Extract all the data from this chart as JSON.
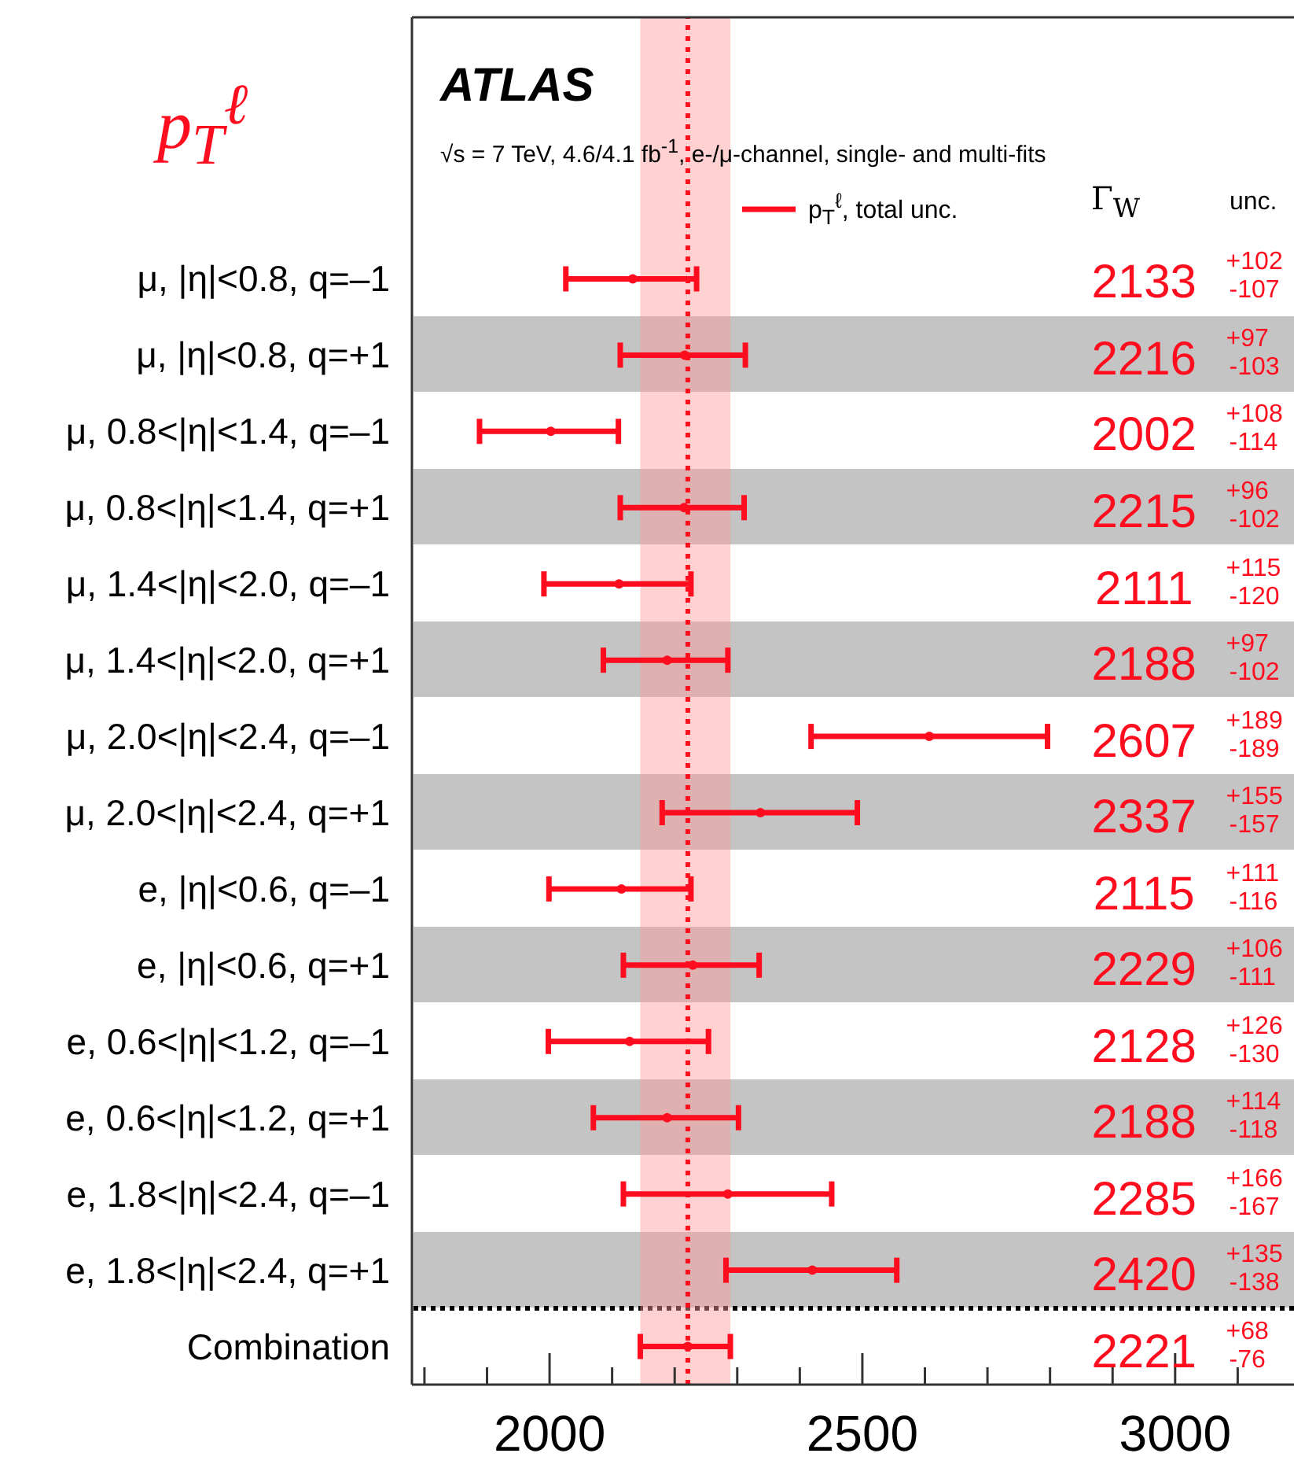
{
  "chart_data": {
    "type": "scatter",
    "orientation": "horizontal",
    "title": "p$_{T}$$^{ℓ}$",
    "subtitle": "√s = 7 TeV, 4.6/4.1 fb$^{-1}$, e-/μ-channel, single- and multi-fits",
    "categories": [
      "μ, |η|<0.8, q=–1",
      "μ, |η|<0.8, q=+1",
      "μ, 0.8<|η|<1.4, q=–1",
      "μ, 0.8<|η|<1.4, q=+1",
      "μ, 1.4<|η|<2.0, q=–1",
      "μ, 1.4<|η|<2.0, q=+1",
      "μ, 2.0<|η|<2.4, q=–1",
      "μ, 2.0<|η|<2.4, q=+1",
      "e, |η|<0.6, q=–1",
      "e, |η|<0.6, q=+1",
      "e, 0.6<|η|<1.2, q=–1",
      "e, 0.6<|η|<1.2, q=+1",
      "e, 1.8<|η|<2.4, q=–1",
      "e, 1.8<|η|<2.4, q=+1",
      "Combination"
    ],
    "series": [
      {
        "name": "p$_{T}$$^{ℓ}$, total unc.",
        "color": "#ff0d1f",
        "values": [
          2133,
          2216,
          2002,
          2215,
          2111,
          2188,
          2607,
          2337,
          2115,
          2229,
          2128,
          2188,
          2285,
          2420,
          2221
        ],
        "errors": [
          [
            2026,
            2235
          ],
          [
            2113,
            2313
          ],
          [
            1888,
            2110
          ],
          [
            2113,
            2311
          ],
          [
            1991,
            2226
          ],
          [
            2086,
            2285
          ],
          [
            2418,
            2796
          ],
          [
            2180,
            2492
          ],
          [
            1999,
            2226
          ],
          [
            2118,
            2335
          ],
          [
            1998,
            2254
          ],
          [
            2070,
            2302
          ],
          [
            2118,
            2451
          ],
          [
            2282,
            2555
          ],
          [
            2145,
            2289
          ]
        ]
      }
    ],
    "annotations": [
      "ATLAS",
      "Γ$_{W}$",
      "unc.",
      "2133",
      "+102",
      "-107",
      "2216",
      "+97",
      "-103",
      "2002",
      "+108",
      "-114",
      "2215",
      "+96",
      "-102",
      "2111",
      "+115",
      "-120",
      "2188",
      "+97",
      "-102",
      "2607",
      "+189",
      "-189",
      "2337",
      "+155",
      "-157",
      "2115",
      "+111",
      "-116",
      "2229",
      "+106",
      "-111",
      "2128",
      "+126",
      "-130",
      "2188",
      "+114",
      "-118",
      "2285",
      "+166",
      "-167",
      "2420",
      "+135",
      "-138",
      "2221",
      "+68",
      "-76"
    ],
    "xlim": [
      1780,
      3190
    ],
    "xticks": [
      {
        "value": 1800,
        "label": null
      },
      {
        "value": 1900,
        "label": null
      },
      2000,
      {
        "value": 2100,
        "label": null
      },
      {
        "value": 2200,
        "label": null
      },
      {
        "value": 2300,
        "label": null
      },
      {
        "value": 2400,
        "label": null
      },
      2500,
      {
        "value": 2600,
        "label": null
      },
      {
        "value": 2700,
        "label": null
      },
      {
        "value": 2800,
        "label": null
      },
      {
        "value": 2900,
        "label": null
      },
      3000,
      {
        "value": 3100,
        "label": null
      }
    ],
    "ref_lines": [
      {
        "axis": "x",
        "value": 2221,
        "color": "#ff0d1f",
        "line_style": "dotted"
      }
    ],
    "bands": [
      {
        "axis": "x",
        "from": 2145,
        "to": 2289,
        "color": "#ff9a9a"
      }
    ],
    "legend": "top",
    "marker": "circle"
  }
}
